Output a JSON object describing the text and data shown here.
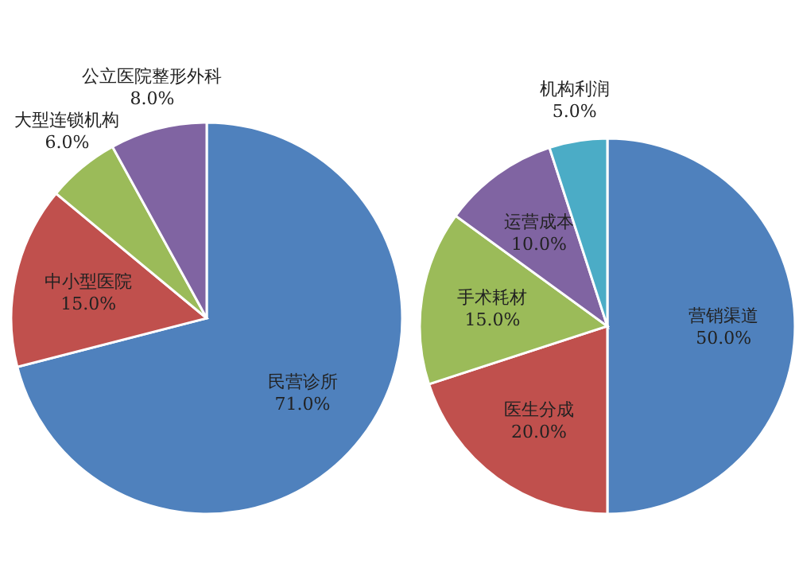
{
  "chart_data": [
    {
      "type": "pie",
      "categories": [
        "民营诊所",
        "中小型医院",
        "大型连锁机构",
        "公立医院整形外科"
      ],
      "values": [
        71.0,
        15.0,
        6.0,
        8.0
      ],
      "colors": [
        "#4f81bd",
        "#c0504d",
        "#9bbb59",
        "#8064a2"
      ],
      "value_labels": [
        "71.0%",
        "15.0%",
        "6.0%",
        "8.0%"
      ]
    },
    {
      "type": "pie",
      "categories": [
        "营销渠道",
        "医生分成",
        "手术耗材",
        "运营成本",
        "机构利润"
      ],
      "values": [
        50.0,
        20.0,
        15.0,
        10.0,
        5.0
      ],
      "colors": [
        "#4f81bd",
        "#c0504d",
        "#9bbb59",
        "#8064a2",
        "#4bacc6"
      ],
      "value_labels": [
        "50.0%",
        "20.0%",
        "15.0%",
        "10.0%",
        "5.0%"
      ]
    }
  ]
}
